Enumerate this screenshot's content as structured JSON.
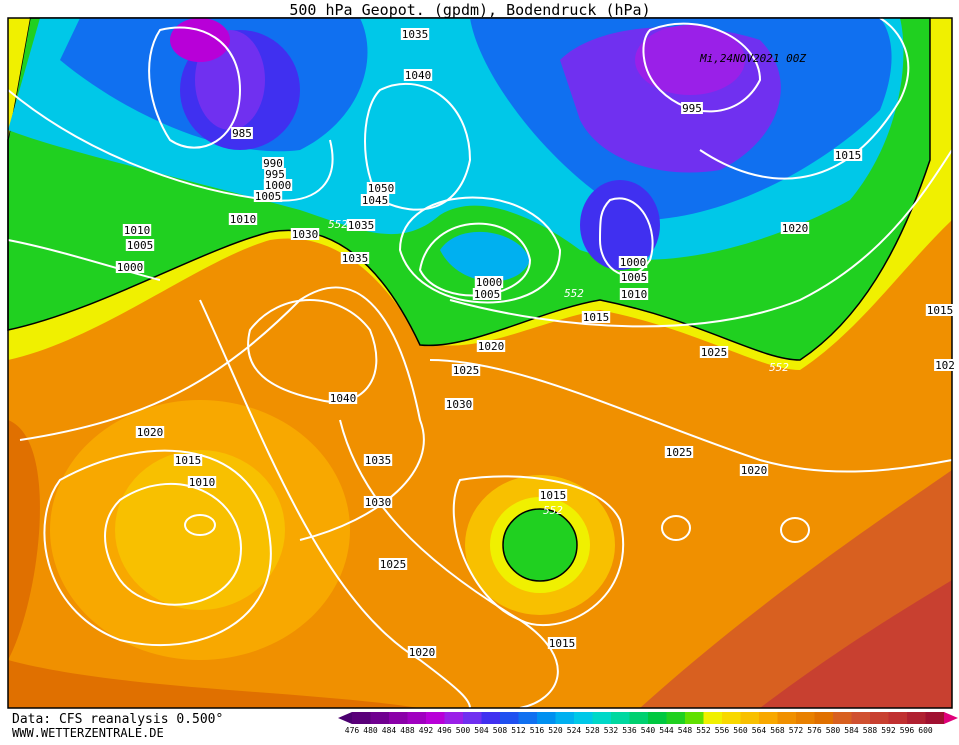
{
  "title": "500 hPa Geopot. (gpdm), Bodendruck (hPa)",
  "timestamp": "Mi,24NOV2021 00Z",
  "isobar_labels": [
    "1035",
    "1040",
    "985",
    "990",
    "995",
    "1000",
    "1005",
    "1010",
    "1050",
    "1045",
    "1035",
    "552",
    "1030",
    "1010",
    "1005",
    "1000",
    "1035",
    "1000",
    "1005",
    "552",
    "995",
    "1015",
    "1020",
    "1000",
    "1005",
    "1010",
    "1015",
    "1020",
    "1025",
    "552",
    "1025",
    "1030",
    "1040",
    "1020",
    "1015",
    "1010",
    "1035",
    "1030",
    "1025",
    "1020",
    "1015",
    "552",
    "1025",
    "1020",
    "1015",
    "1015",
    "102"
  ],
  "colorbar": {
    "labels": [
      476,
      480,
      484,
      488,
      492,
      496,
      500,
      504,
      508,
      512,
      516,
      520,
      524,
      528,
      532,
      536,
      540,
      544,
      548,
      552,
      556,
      560,
      564,
      568,
      572,
      576,
      580,
      584,
      588,
      592,
      596,
      600
    ],
    "colors": [
      "#4b0070",
      "#5a007a",
      "#700090",
      "#8a00a8",
      "#a000c0",
      "#b800d8",
      "#9a20e8",
      "#7030f0",
      "#4030f0",
      "#2050f0",
      "#1070f0",
      "#0090f0",
      "#00b0f0",
      "#00c8e8",
      "#00d8c8",
      "#00d8a0",
      "#00d070",
      "#00c840",
      "#20d020",
      "#60e000",
      "#f0f000",
      "#f8d800",
      "#f8c000",
      "#f8a800",
      "#f09000",
      "#e88000",
      "#e07000",
      "#d86020",
      "#d05030",
      "#c84030",
      "#c03030",
      "#b02030",
      "#a01030",
      "#e0007a"
    ]
  },
  "footer": {
    "source": "Data: CFS reanalysis 0.500°",
    "website": "WWW.WETTERZENTRALE.DE"
  }
}
